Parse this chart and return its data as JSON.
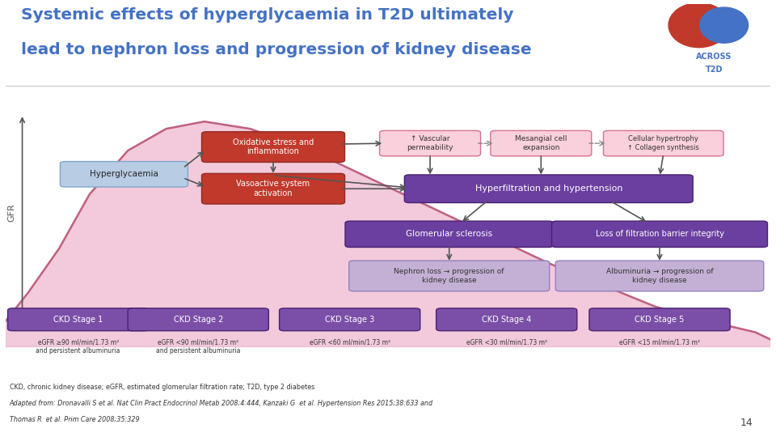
{
  "title_line1": "Systemic effects of hyperglycaemia in T2D ultimately",
  "title_line2": "lead to nephron loss and progression of kidney disease",
  "title_color": "#4472c4",
  "bg_color": "#ffffff",
  "red_color": "#c0392b",
  "pink_fill": "#f4a0b0",
  "purple_dark": "#6b3fa0",
  "purple_light": "#c5b0d5",
  "purple_medium": "#7b4fa8",
  "blue_box_color": "#b8cce4",
  "blue_box_edge": "#7da6cc",
  "light_pink_fill": "#f9d0dc",
  "light_pink_edge": "#d87090",
  "curve_fill": "#e8a0be",
  "curve_line": "#c06080",
  "left_bar_color": "#4472c4",
  "right_bar_color": "#c0392b",
  "separator_color": "#d0d0d0",
  "footer_text1": "CKD, chronic kidney disease; eGFR, estimated glomerular filtration rate; T2D, type 2 diabetes",
  "footer_text2": "Adapted from: Dronavalli S et al. Nat Clin Pract Endocrinol Metab 2008;4:444, Kanzaki G  et al. Hypertension Res 2015;38:633 and",
  "footer_text3": "Thomas R  et al. Prim Care 2008;35:329",
  "page_number": "14",
  "ckd_labels": [
    "CKD Stage 1",
    "CKD Stage 2",
    "CKD Stage 3",
    "CKD Stage 4",
    "CKD Stage 5"
  ],
  "egfr_labels": [
    "eGFR ≥90 ml/min/1.73 m²\nand persistent albuminuria",
    "eGFR <90 ml/min/1.73 m²\nand persistent albuminuria",
    "eGFR <60 ml/min/1.73 m²",
    "eGFR <30 ml/min/1.73 m²",
    "eGFR <15 ml/min/1.73 m²"
  ]
}
